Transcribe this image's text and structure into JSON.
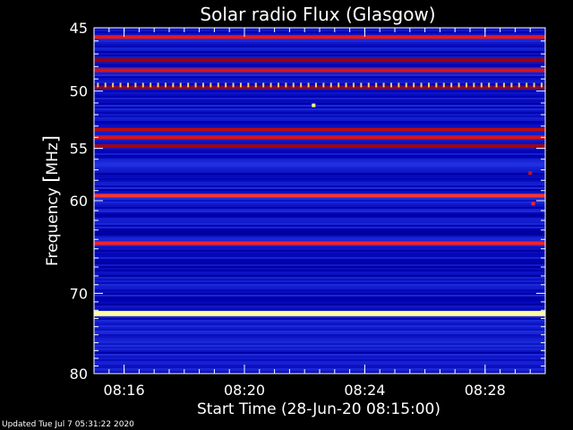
{
  "chart_data": {
    "type": "heatmap",
    "title": "Solar radio Flux (Glasgow)",
    "xlabel": "Start Time (28-Jun-20 08:15:00)",
    "ylabel": "Frequency [MHz]",
    "ylabel_prefix": "Frequency ",
    "ylabel_unit": "MHz",
    "y_scale": "log",
    "ylim": [
      45,
      80
    ],
    "y_ticks": [
      {
        "value": 45,
        "label": "45"
      },
      {
        "value": 50,
        "label": "50"
      },
      {
        "value": 55,
        "label": "55"
      },
      {
        "value": 60,
        "label": "60"
      },
      {
        "value": 70,
        "label": "70"
      },
      {
        "value": 80,
        "label": "80"
      }
    ],
    "y_minor_ticks": [
      46,
      47,
      48,
      49,
      51,
      52,
      53,
      54,
      56,
      57,
      58,
      59,
      61,
      62,
      63,
      64,
      65,
      66,
      67,
      68,
      69,
      71,
      72,
      73,
      74,
      75,
      76,
      77,
      78,
      79
    ],
    "x_unit": "minutes since 08:15:00",
    "xlim": [
      0,
      15
    ],
    "x_ticks": [
      {
        "value": 1,
        "label": "08:16"
      },
      {
        "value": 5,
        "label": "08:20"
      },
      {
        "value": 9,
        "label": "08:24"
      },
      {
        "value": 13,
        "label": "08:28"
      }
    ],
    "x_minor_step": 0.5,
    "colormap": [
      "#000020",
      "#0000b0",
      "#2030e0",
      "#a00000",
      "#ff2020",
      "#ffff80"
    ],
    "background_intensity": 0.28,
    "emission_bands": [
      {
        "freq_mhz": 45.7,
        "intensity": 0.75
      },
      {
        "freq_mhz": 47.5,
        "intensity": 0.6
      },
      {
        "freq_mhz": 48.3,
        "intensity": 0.72
      },
      {
        "freq_mhz": 49.7,
        "intensity": 0.55
      },
      {
        "freq_mhz": 53.3,
        "intensity": 0.66
      },
      {
        "freq_mhz": 54.0,
        "intensity": 0.72
      },
      {
        "freq_mhz": 54.8,
        "intensity": 0.62
      },
      {
        "freq_mhz": 56.5,
        "intensity": 0.4
      },
      {
        "freq_mhz": 59.5,
        "intensity": 0.82
      },
      {
        "freq_mhz": 64.4,
        "intensity": 0.8
      },
      {
        "freq_mhz": 72.4,
        "intensity": 1.0
      }
    ],
    "pulsed_line": {
      "freq_mhz": 49.5,
      "intensity": 0.95
    },
    "spots": [
      {
        "minute": 7.3,
        "freq_mhz": 51.2,
        "intensity": 1.0
      },
      {
        "minute": 14.5,
        "freq_mhz": 57.3,
        "intensity": 0.7
      },
      {
        "minute": 14.6,
        "freq_mhz": 60.3,
        "intensity": 0.8
      }
    ]
  },
  "footer": {
    "updated": "Updated Tue Jul  7 05:31:22 2020"
  }
}
